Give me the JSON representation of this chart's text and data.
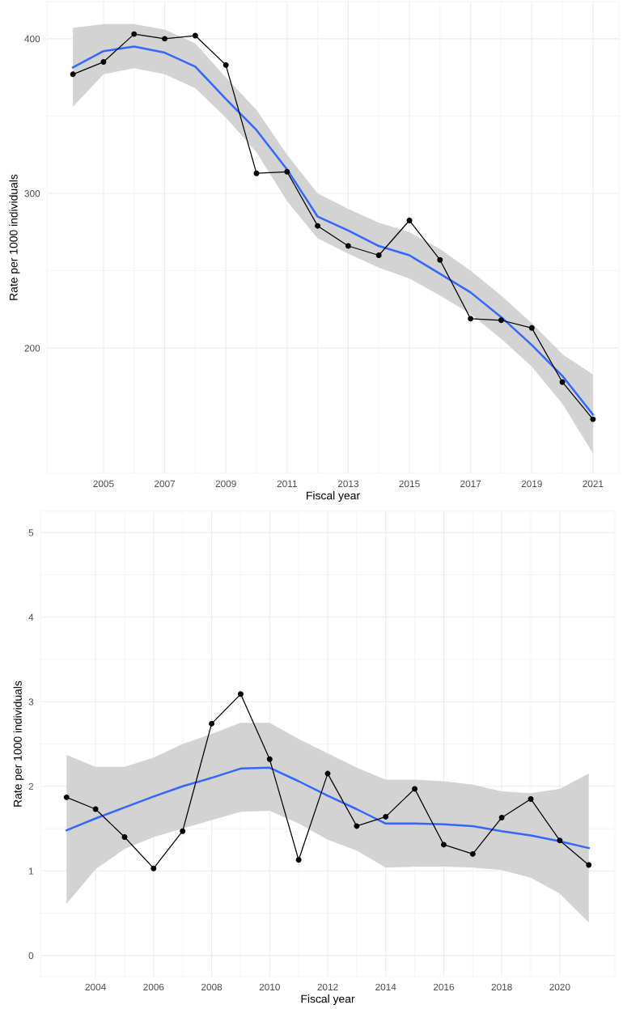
{
  "chart_data": [
    {
      "type": "line",
      "xlabel": "Fiscal year",
      "ylabel": "Rate per 1000 individuals",
      "xlim": [
        2003.15,
        2021.85
      ],
      "ylim": [
        119,
        424
      ],
      "xticks": [
        2005,
        2007,
        2009,
        2011,
        2013,
        2015,
        2017,
        2019,
        2021
      ],
      "yticks": [
        200,
        300,
        400
      ],
      "grid": true,
      "x": [
        2004,
        2005,
        2006,
        2007,
        2008,
        2009,
        2010,
        2011,
        2012,
        2013,
        2014,
        2015,
        2016,
        2017,
        2018,
        2019,
        2020,
        2021
      ],
      "series": [
        {
          "color": "#000000",
          "marker": "circle",
          "values": [
            377,
            385,
            403,
            400,
            402,
            383,
            313,
            314,
            279,
            266,
            260,
            282.5,
            257,
            219,
            218,
            213,
            178,
            154
          ]
        },
        {
          "color": "#3366ff",
          "marker": "none",
          "values": [
            381.5,
            392,
            395,
            391,
            382,
            361,
            341,
            315.5,
            285,
            276,
            266,
            260,
            248,
            236,
            220,
            202,
            182,
            157
          ],
          "lower": [
            356,
            377,
            381,
            377,
            368,
            349,
            326.5,
            295,
            271,
            261,
            252,
            245,
            234,
            222,
            206,
            188,
            164,
            132
          ],
          "upper": [
            407,
            409.5,
            409.5,
            406,
            397,
            375,
            354,
            325,
            300,
            290,
            281,
            275,
            264,
            250,
            234,
            216,
            196,
            183
          ]
        }
      ]
    },
    {
      "type": "line",
      "xlabel": "Fiscal year",
      "ylabel": "Rate per 1000 individuals",
      "xlim": [
        2002.1,
        2021.9
      ],
      "ylim": [
        -0.25,
        5.25
      ],
      "xticks": [
        2004,
        2006,
        2008,
        2010,
        2012,
        2014,
        2016,
        2018,
        2020
      ],
      "yticks": [
        0,
        1,
        2,
        3,
        4,
        5
      ],
      "grid": true,
      "x": [
        2003,
        2004,
        2005,
        2006,
        2007,
        2008,
        2009,
        2010,
        2011,
        2012,
        2013,
        2014,
        2015,
        2016,
        2017,
        2018,
        2019,
        2020,
        2021
      ],
      "series": [
        {
          "color": "#000000",
          "marker": "circle",
          "values": [
            1.87,
            1.73,
            1.4,
            1.03,
            1.47,
            2.74,
            3.09,
            2.32,
            1.13,
            2.15,
            1.53,
            1.64,
            1.97,
            1.31,
            1.2,
            1.63,
            1.85,
            1.36,
            1.07
          ]
        },
        {
          "color": "#3366ff",
          "marker": "none",
          "values": [
            1.48,
            1.62,
            1.75,
            1.88,
            2.0,
            2.1,
            2.21,
            2.22,
            2.06,
            1.89,
            1.73,
            1.56,
            1.56,
            1.55,
            1.53,
            1.47,
            1.42,
            1.35,
            1.27
          ],
          "lower": [
            0.61,
            1.02,
            1.26,
            1.4,
            1.5,
            1.6,
            1.7,
            1.71,
            1.56,
            1.37,
            1.24,
            1.04,
            1.05,
            1.05,
            1.04,
            1.01,
            0.92,
            0.73,
            0.39
          ],
          "upper": [
            2.37,
            2.23,
            2.23,
            2.34,
            2.5,
            2.62,
            2.75,
            2.75,
            2.56,
            2.39,
            2.22,
            2.08,
            2.08,
            2.06,
            2.02,
            1.94,
            1.92,
            1.97,
            2.15
          ]
        }
      ]
    }
  ]
}
